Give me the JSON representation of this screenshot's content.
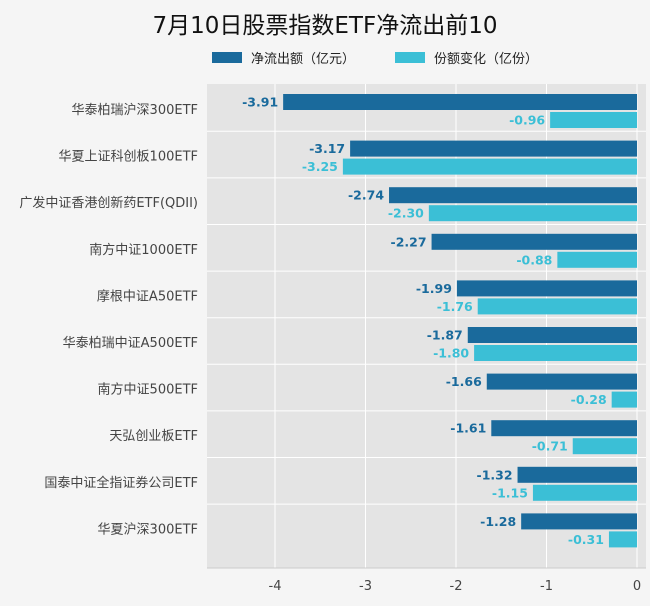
{
  "chart_data": {
    "type": "bar",
    "orientation": "horizontal",
    "title": "7月10日股票指数ETF净流出前10",
    "categories": [
      "华泰柏瑞沪深300ETF",
      "华夏上证科创板100ETF",
      "广发中证香港创新药ETF(QDII)",
      "南方中证1000ETF",
      "摩根中证A50ETF",
      "华泰柏瑞中证A500ETF",
      "南方中证500ETF",
      "天弘创业板ETF",
      "国泰中证全指证券公司ETF",
      "华夏沪深300ETF"
    ],
    "series": [
      {
        "name": "净流出额（亿元）",
        "color": "#1a6a9c",
        "values": [
          -3.91,
          -3.17,
          -2.74,
          -2.27,
          -1.99,
          -1.87,
          -1.66,
          -1.61,
          -1.32,
          -1.28
        ],
        "labels": [
          "-3.91",
          "-3.17",
          "-2.74",
          "-2.27",
          "-1.99",
          "-1.87",
          "-1.66",
          "-1.61",
          "-1.32",
          "-1.28"
        ]
      },
      {
        "name": "份额变化（亿份）",
        "color": "#3bbfd6",
        "values": [
          -0.96,
          -3.25,
          -2.3,
          -0.88,
          -1.76,
          -1.8,
          -0.28,
          -0.71,
          -1.15,
          -0.31
        ],
        "labels": [
          "-0.96",
          "-3.25",
          "-2.30",
          "-0.88",
          "-1.76",
          "-1.80",
          "-0.28",
          "-0.71",
          "-1.15",
          "-0.31"
        ]
      }
    ],
    "xlim": [
      -4.7,
      0
    ],
    "xticks": [
      -4,
      -3,
      -2,
      -1,
      0
    ],
    "xtick_labels": [
      "-4",
      "-3",
      "-2",
      "-1",
      "0"
    ],
    "grid": true,
    "legend_position": "top"
  }
}
